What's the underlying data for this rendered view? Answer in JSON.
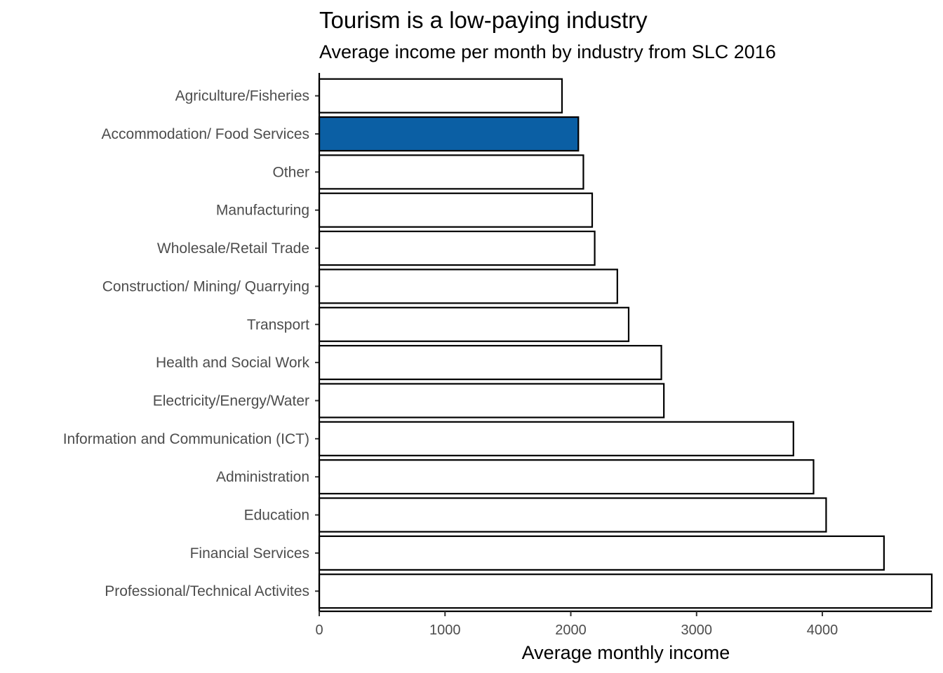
{
  "chart_data": {
    "type": "bar",
    "orientation": "horizontal",
    "title": "Tourism is a low-paying industry",
    "subtitle": "Average income per month by industry from SLC 2016",
    "xlabel": "Average monthly income",
    "ylabel": "",
    "xlim": [
      0,
      4870
    ],
    "xticks": [
      0,
      1000,
      2000,
      3000,
      4000
    ],
    "grid": false,
    "legend": "none",
    "highlight_color": "#0b5fa4",
    "default_fill": "#ffffff",
    "bar_stroke": "#000000",
    "categories": [
      "Agriculture/Fisheries",
      "Accommodation/ Food Services",
      "Other",
      "Manufacturing",
      "Wholesale/Retail Trade",
      "Construction/ Mining/ Quarrying",
      "Transport",
      "Health and Social Work",
      "Electricity/Energy/Water",
      "Information and Communication (ICT)",
      "Administration",
      "Education",
      "Financial Services",
      "Professional/Technical Activites"
    ],
    "values": [
      1930,
      2060,
      2100,
      2170,
      2190,
      2370,
      2460,
      2720,
      2740,
      3770,
      3930,
      4030,
      4490,
      4870
    ],
    "highlighted": [
      "Accommodation/ Food Services"
    ]
  }
}
